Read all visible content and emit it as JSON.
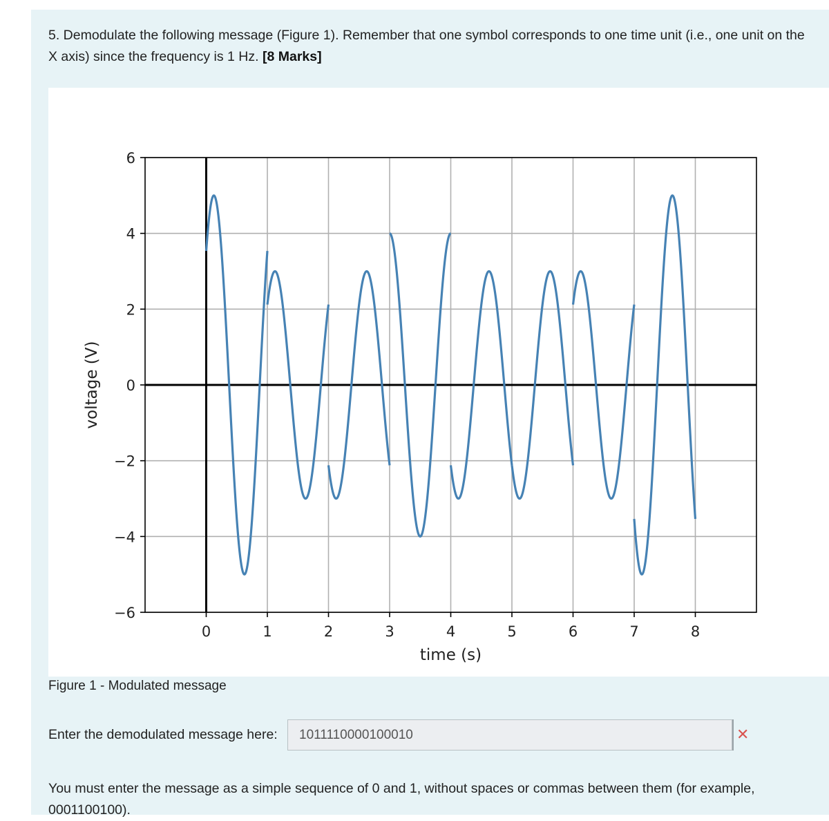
{
  "question": {
    "text_line1": "5. Demodulate the following message (Figure 1). Remember that one symbol corresponds to one time unit (i.e., one unit on the",
    "text_line2": "X axis) since the frequency is 1 Hz. ",
    "marks": "[8 Marks]"
  },
  "figure": {
    "caption": "Figure 1 - Modulated message"
  },
  "chart_data": {
    "type": "line",
    "title": "",
    "xlabel": "time (s)",
    "ylabel": "voltage (V)",
    "xlim": [
      -1.0,
      9.0
    ],
    "ylim": [
      -6,
      6
    ],
    "xticks": [
      0,
      1,
      2,
      3,
      4,
      5,
      6,
      7,
      8
    ],
    "yticks": [
      6,
      4,
      2,
      0,
      -2,
      -4,
      -6
    ],
    "ytick_labels": [
      "6",
      "4",
      "2",
      "0",
      "−2",
      "−4",
      "−6"
    ],
    "grid": true,
    "series_color": "#4682b4",
    "carrier_frequency_hz": 1,
    "symbols": [
      {
        "start": 0,
        "end": 1,
        "amplitude": 5,
        "phase_deg": 45
      },
      {
        "start": 1,
        "end": 2,
        "amplitude": 3,
        "phase_deg": 45
      },
      {
        "start": 2,
        "end": 3,
        "amplitude": 3,
        "phase_deg": 225
      },
      {
        "start": 3,
        "end": 4,
        "amplitude": 4,
        "phase_deg": 90
      },
      {
        "start": 4,
        "end": 5,
        "amplitude": 3,
        "phase_deg": 225
      },
      {
        "start": 5,
        "end": 6,
        "amplitude": 3,
        "phase_deg": 225
      },
      {
        "start": 6,
        "end": 7,
        "amplitude": 3,
        "phase_deg": 45
      },
      {
        "start": 7,
        "end": 8,
        "amplitude": 5,
        "phase_deg": 225
      }
    ]
  },
  "answer": {
    "label": "Enter the demodulated message here:",
    "value": "1011110000100010",
    "status_icon": "cross-icon",
    "status_color": "#d9534f"
  },
  "instructions": {
    "text": "You must enter the message as a simple sequence of 0 and 1, without spaces or commas between them (for example, 0001100100)."
  }
}
